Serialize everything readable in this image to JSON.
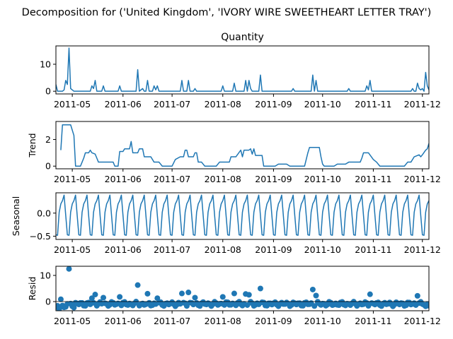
{
  "title": "Decomposition for ('United Kingdom', 'IVORY WIRE SWEETHEART LETTER TRAY')",
  "series_color": "#1f77b4",
  "x_ticks": [
    "2011-05",
    "2011-06",
    "2011-07",
    "2011-08",
    "2011-09",
    "2011-10",
    "2011-11",
    "2011-12"
  ],
  "chart_data": [
    {
      "type": "line",
      "title": "Quantity",
      "ylabel": "",
      "y_ticks": [
        0,
        10
      ],
      "ylim": [
        -1,
        16.8
      ],
      "xlim": [
        "2011-04-21",
        "2011-12-05"
      ],
      "points": [
        [
          "2011-04-21",
          2.5
        ],
        [
          "2011-04-22",
          0
        ],
        [
          "2011-04-25",
          0
        ],
        [
          "2011-04-26",
          0.5
        ],
        [
          "2011-04-27",
          4
        ],
        [
          "2011-04-28",
          2.5
        ],
        [
          "2011-04-29",
          16
        ],
        [
          "2011-04-30",
          1
        ],
        [
          "2011-05-02",
          0
        ],
        [
          "2011-05-12",
          0
        ],
        [
          "2011-05-13",
          2
        ],
        [
          "2011-05-14",
          1
        ],
        [
          "2011-05-15",
          4
        ],
        [
          "2011-05-16",
          0
        ],
        [
          "2011-05-19",
          0
        ],
        [
          "2011-05-20",
          2
        ],
        [
          "2011-05-21",
          0
        ],
        [
          "2011-05-29",
          0
        ],
        [
          "2011-05-30",
          2
        ],
        [
          "2011-05-31",
          0
        ],
        [
          "2011-06-09",
          0
        ],
        [
          "2011-06-10",
          8
        ],
        [
          "2011-06-11",
          0
        ],
        [
          "2011-06-13",
          1
        ],
        [
          "2011-06-14",
          0
        ],
        [
          "2011-06-15",
          0
        ],
        [
          "2011-06-16",
          4
        ],
        [
          "2011-06-17",
          0
        ],
        [
          "2011-06-19",
          0
        ],
        [
          "2011-06-20",
          2
        ],
        [
          "2011-06-21",
          0.5
        ],
        [
          "2011-06-22",
          2
        ],
        [
          "2011-06-23",
          0
        ],
        [
          "2011-07-06",
          0
        ],
        [
          "2011-07-07",
          4
        ],
        [
          "2011-07-08",
          0
        ],
        [
          "2011-07-10",
          0
        ],
        [
          "2011-07-11",
          4
        ],
        [
          "2011-07-12",
          0
        ],
        [
          "2011-07-14",
          0
        ],
        [
          "2011-07-15",
          1
        ],
        [
          "2011-07-16",
          0
        ],
        [
          "2011-07-31",
          0
        ],
        [
          "2011-08-01",
          2
        ],
        [
          "2011-08-02",
          0
        ],
        [
          "2011-08-07",
          0
        ],
        [
          "2011-08-08",
          3
        ],
        [
          "2011-08-09",
          0
        ],
        [
          "2011-08-14",
          0
        ],
        [
          "2011-08-15",
          4
        ],
        [
          "2011-08-16",
          0
        ],
        [
          "2011-08-17",
          4
        ],
        [
          "2011-08-18",
          1
        ],
        [
          "2011-08-19",
          0
        ],
        [
          "2011-08-23",
          0
        ],
        [
          "2011-08-24",
          6
        ],
        [
          "2011-08-25",
          0
        ],
        [
          "2011-09-12",
          0
        ],
        [
          "2011-09-13",
          1
        ],
        [
          "2011-09-14",
          0
        ],
        [
          "2011-09-24",
          0
        ],
        [
          "2011-09-25",
          6
        ],
        [
          "2011-09-26",
          0
        ],
        [
          "2011-09-27",
          4
        ],
        [
          "2011-09-28",
          0
        ],
        [
          "2011-10-16",
          0
        ],
        [
          "2011-10-17",
          1
        ],
        [
          "2011-10-18",
          0
        ],
        [
          "2011-10-27",
          0
        ],
        [
          "2011-10-28",
          2
        ],
        [
          "2011-10-29",
          0.5
        ],
        [
          "2011-10-30",
          4
        ],
        [
          "2011-10-31",
          0
        ],
        [
          "2011-11-24",
          0
        ],
        [
          "2011-11-25",
          1
        ],
        [
          "2011-11-26",
          0
        ],
        [
          "2011-11-27",
          0
        ],
        [
          "2011-11-28",
          3
        ],
        [
          "2011-11-29",
          1
        ],
        [
          "2011-11-30",
          0.5
        ],
        [
          "2011-12-01",
          1
        ],
        [
          "2011-12-02",
          0
        ],
        [
          "2011-12-03",
          7
        ],
        [
          "2011-12-04",
          2
        ],
        [
          "2011-12-05",
          0.5
        ]
      ]
    },
    {
      "type": "line",
      "title": "",
      "ylabel": "Trend",
      "y_ticks": [
        0,
        2
      ],
      "ylim": [
        -0.2,
        3.35
      ],
      "xlim": [
        "2011-04-21",
        "2011-12-05"
      ],
      "points": [
        [
          "2011-04-24",
          1.2
        ],
        [
          "2011-04-25",
          3.1
        ],
        [
          "2011-04-30",
          3.1
        ],
        [
          "2011-05-02",
          2.3
        ],
        [
          "2011-05-03",
          0
        ],
        [
          "2011-05-06",
          0
        ],
        [
          "2011-05-07",
          0.3
        ],
        [
          "2011-05-08",
          0.6
        ],
        [
          "2011-05-09",
          1.0
        ],
        [
          "2011-05-11",
          1.0
        ],
        [
          "2011-05-12",
          1.2
        ],
        [
          "2011-05-13",
          1.0
        ],
        [
          "2011-05-15",
          0.9
        ],
        [
          "2011-05-16",
          0.6
        ],
        [
          "2011-05-17",
          0.3
        ],
        [
          "2011-05-24",
          0.3
        ],
        [
          "2011-05-26",
          0.3
        ],
        [
          "2011-05-27",
          0
        ],
        [
          "2011-05-29",
          0
        ],
        [
          "2011-05-30",
          1.1
        ],
        [
          "2011-06-01",
          1.1
        ],
        [
          "2011-06-02",
          1.3
        ],
        [
          "2011-06-05",
          1.3
        ],
        [
          "2011-06-06",
          1.85
        ],
        [
          "2011-06-07",
          1.0
        ],
        [
          "2011-06-10",
          1.0
        ],
        [
          "2011-06-11",
          1.3
        ],
        [
          "2011-06-13",
          1.3
        ],
        [
          "2011-06-14",
          0.7
        ],
        [
          "2011-06-18",
          0.7
        ],
        [
          "2011-06-20",
          0.3
        ],
        [
          "2011-06-23",
          0.3
        ],
        [
          "2011-06-25",
          0
        ],
        [
          "2011-07-01",
          0
        ],
        [
          "2011-07-03",
          0.5
        ],
        [
          "2011-07-06",
          0.7
        ],
        [
          "2011-07-08",
          0.7
        ],
        [
          "2011-07-09",
          1.2
        ],
        [
          "2011-07-10",
          1.2
        ],
        [
          "2011-07-11",
          0.7
        ],
        [
          "2011-07-14",
          0.7
        ],
        [
          "2011-07-15",
          1.0
        ],
        [
          "2011-07-16",
          1.0
        ],
        [
          "2011-07-17",
          0.3
        ],
        [
          "2011-07-19",
          0.3
        ],
        [
          "2011-07-21",
          0
        ],
        [
          "2011-07-28",
          0
        ],
        [
          "2011-07-30",
          0.3
        ],
        [
          "2011-08-05",
          0.3
        ],
        [
          "2011-08-06",
          0.7
        ],
        [
          "2011-08-09",
          0.7
        ],
        [
          "2011-08-12",
          1.2
        ],
        [
          "2011-08-13",
          0.7
        ],
        [
          "2011-08-14",
          1.2
        ],
        [
          "2011-08-17",
          1.2
        ],
        [
          "2011-08-18",
          1.3
        ],
        [
          "2011-08-19",
          0.9
        ],
        [
          "2011-08-20",
          1.3
        ],
        [
          "2011-08-21",
          0.8
        ],
        [
          "2011-08-25",
          0.8
        ],
        [
          "2011-08-26",
          0
        ],
        [
          "2011-09-02",
          0
        ],
        [
          "2011-09-04",
          0.15
        ],
        [
          "2011-09-09",
          0.15
        ],
        [
          "2011-09-11",
          0
        ],
        [
          "2011-09-20",
          0
        ],
        [
          "2011-09-22",
          1.0
        ],
        [
          "2011-09-23",
          1.4
        ],
        [
          "2011-09-29",
          1.4
        ],
        [
          "2011-09-30",
          0.7
        ],
        [
          "2011-10-01",
          0.15
        ],
        [
          "2011-10-02",
          0
        ],
        [
          "2011-10-08",
          0
        ],
        [
          "2011-10-10",
          0.15
        ],
        [
          "2011-10-15",
          0.15
        ],
        [
          "2011-10-17",
          0.3
        ],
        [
          "2011-10-24",
          0.3
        ],
        [
          "2011-10-25",
          0.6
        ],
        [
          "2011-10-26",
          1.0
        ],
        [
          "2011-10-29",
          1.0
        ],
        [
          "2011-11-01",
          0.5
        ],
        [
          "2011-11-03",
          0.3
        ],
        [
          "2011-11-05",
          0
        ],
        [
          "2011-11-20",
          0
        ],
        [
          "2011-11-22",
          0.3
        ],
        [
          "2011-11-24",
          0.3
        ],
        [
          "2011-11-26",
          0.7
        ],
        [
          "2011-11-29",
          0.85
        ],
        [
          "2011-11-30",
          0.7
        ],
        [
          "2011-12-01",
          0.85
        ],
        [
          "2011-12-03",
          1.2
        ],
        [
          "2011-12-04",
          1.3
        ],
        [
          "2011-12-05",
          1.7
        ]
      ]
    },
    {
      "type": "line",
      "title": "",
      "ylabel": "Seasonal",
      "y_ticks": [
        -0.5,
        0.0
      ],
      "y_tick_labels": [
        "−0.5",
        "0.0"
      ],
      "ylim": [
        -0.57,
        0.44
      ],
      "xlim": [
        "2011-04-21",
        "2011-12-05"
      ],
      "period": 7,
      "pattern": [
        -0.47,
        -0.48,
        0.02,
        0.2,
        0.27,
        0.39,
        -0.05
      ],
      "start": "2011-04-21"
    },
    {
      "type": "scatter",
      "title": "",
      "ylabel": "Resid",
      "y_ticks": [
        0,
        10
      ],
      "ylim": [
        -3.5,
        13.5
      ],
      "xlim": [
        "2011-04-21",
        "2011-12-05"
      ],
      "start": "2011-04-21",
      "outliers": [
        [
          "2011-04-21",
          -2.1
        ],
        [
          "2011-04-22",
          -1.6
        ],
        [
          "2011-04-23",
          -2.8
        ],
        [
          "2011-04-24",
          0.9
        ],
        [
          "2011-04-25",
          -1.5
        ],
        [
          "2011-04-26",
          -2.2
        ],
        [
          "2011-04-27",
          -2.0
        ],
        [
          "2011-04-29",
          12.5
        ],
        [
          "2011-05-01",
          -1.8
        ],
        [
          "2011-05-02",
          -2.3
        ],
        [
          "2011-05-13",
          1.3
        ],
        [
          "2011-05-15",
          2.7
        ],
        [
          "2011-05-16",
          -1.6
        ],
        [
          "2011-05-20",
          1.5
        ],
        [
          "2011-05-30",
          1.8
        ],
        [
          "2011-06-10",
          6.3
        ],
        [
          "2011-06-16",
          3.0
        ],
        [
          "2011-06-22",
          1.3
        ],
        [
          "2011-07-07",
          3.1
        ],
        [
          "2011-07-11",
          3.5
        ],
        [
          "2011-07-15",
          1.5
        ],
        [
          "2011-08-01",
          1.8
        ],
        [
          "2011-08-08",
          3.1
        ],
        [
          "2011-08-15",
          2.9
        ],
        [
          "2011-08-17",
          2.6
        ],
        [
          "2011-08-24",
          5.0
        ],
        [
          "2011-09-25",
          4.6
        ],
        [
          "2011-09-27",
          2.3
        ],
        [
          "2011-10-30",
          2.8
        ],
        [
          "2011-11-28",
          2.2
        ],
        [
          "2011-12-03",
          -1.8
        ]
      ]
    }
  ]
}
